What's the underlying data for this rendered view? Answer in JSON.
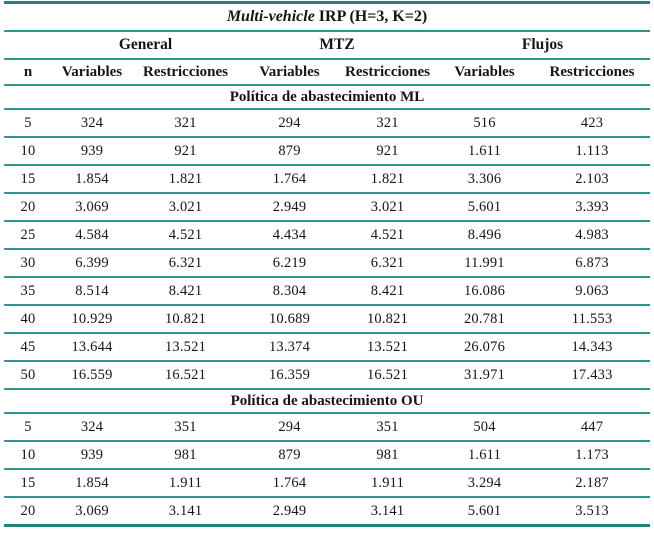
{
  "table": {
    "title": {
      "italic_part": "Multi-vehicle",
      "regular_part": " IRP (H=3, K=2)"
    },
    "groups": [
      {
        "label": "General"
      },
      {
        "label": "MTZ"
      },
      {
        "label": "Flujos"
      }
    ],
    "col_headers": [
      "n",
      "Variables",
      "Restricciones",
      "Variables",
      "Restricciones",
      "Variables",
      "Restricciones"
    ],
    "sections": [
      {
        "label": "Política de abastecimiento ML",
        "rows": [
          [
            "5",
            "324",
            "321",
            "294",
            "321",
            "516",
            "423"
          ],
          [
            "10",
            "939",
            "921",
            "879",
            "921",
            "1.611",
            "1.113"
          ],
          [
            "15",
            "1.854",
            "1.821",
            "1.764",
            "1.821",
            "3.306",
            "2.103"
          ],
          [
            "20",
            "3.069",
            "3.021",
            "2.949",
            "3.021",
            "5.601",
            "3.393"
          ],
          [
            "25",
            "4.584",
            "4.521",
            "4.434",
            "4.521",
            "8.496",
            "4.983"
          ],
          [
            "30",
            "6.399",
            "6.321",
            "6.219",
            "6.321",
            "11.991",
            "6.873"
          ],
          [
            "35",
            "8.514",
            "8.421",
            "8.304",
            "8.421",
            "16.086",
            "9.063"
          ],
          [
            "40",
            "10.929",
            "10.821",
            "10.689",
            "10.821",
            "20.781",
            "11.553"
          ],
          [
            "45",
            "13.644",
            "13.521",
            "13.374",
            "13.521",
            "26.076",
            "14.343"
          ],
          [
            "50",
            "16.559",
            "16.521",
            "16.359",
            "16.521",
            "31.971",
            "17.433"
          ]
        ]
      },
      {
        "label": "Política de abastecimiento OU",
        "rows": [
          [
            "5",
            "324",
            "351",
            "294",
            "351",
            "504",
            "447"
          ],
          [
            "10",
            "939",
            "981",
            "879",
            "981",
            "1.611",
            "1.173"
          ],
          [
            "15",
            "1.854",
            "1.911",
            "1.764",
            "1.911",
            "3.294",
            "2.187"
          ],
          [
            "20",
            "3.069",
            "3.141",
            "2.949",
            "3.141",
            "5.601",
            "3.513"
          ]
        ]
      }
    ],
    "colors": {
      "rule": "#2d968c",
      "outer_rule": "#1f837b",
      "text": "#151515"
    }
  }
}
